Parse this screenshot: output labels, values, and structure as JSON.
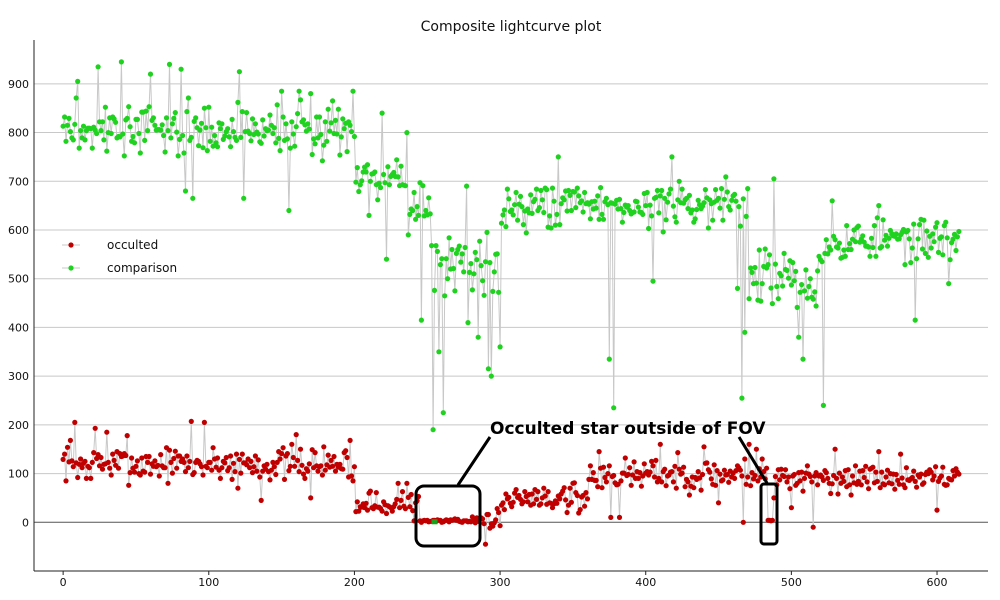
{
  "chart_data": {
    "type": "scatter",
    "title": "Composite lightcurve plot",
    "xlabel": "",
    "ylabel": "",
    "xlim": [
      -20,
      635
    ],
    "ylim": [
      -100,
      990
    ],
    "xticks": [
      0,
      100,
      200,
      300,
      400,
      500,
      600
    ],
    "yticks": [
      0,
      100,
      200,
      300,
      400,
      500,
      600,
      700,
      800,
      900
    ],
    "grid": "horizontal",
    "legend_position": "left",
    "legend": [
      "occulted",
      "comparison"
    ],
    "colors": {
      "occulted": "#c00000",
      "comparison": "#1fd21f",
      "connector": "#c8c8c8",
      "grid": "#c8c8c8",
      "missing_marker": "#1aa01a"
    },
    "annotation": {
      "text": "Occulted star outside of FOV",
      "targets": [
        [
          245,
          280
        ],
        [
          484,
          487
        ]
      ]
    },
    "series": [
      {
        "name": "occulted",
        "segments": [
          {
            "x_start": 0,
            "x_end": 200,
            "mean": 120,
            "amp": 32,
            "seed": 7
          },
          {
            "x_start": 201,
            "x_end": 244,
            "mean": 38,
            "amp": 24,
            "seed": 11
          },
          {
            "x_start": 245,
            "x_end": 280,
            "mean": 3,
            "amp": 3,
            "seed": 13
          },
          {
            "x_start": 281,
            "x_end": 300,
            "mean": 10,
            "amp": 22,
            "seed": 17
          },
          {
            "x_start": 301,
            "x_end": 360,
            "mean": 48,
            "amp": 28,
            "seed": 19
          },
          {
            "x_start": 361,
            "x_end": 483,
            "mean": 98,
            "amp": 30,
            "seed": 23
          },
          {
            "x_start": 484,
            "x_end": 487,
            "mean": 3,
            "amp": 2,
            "seed": 29
          },
          {
            "x_start": 488,
            "x_end": 615,
            "mean": 90,
            "amp": 25,
            "seed": 31
          }
        ],
        "points": [
          {
            "x": 1,
            "y": 140
          },
          {
            "x": 5,
            "y": 168
          },
          {
            "x": 8,
            "y": 205
          },
          {
            "x": 16,
            "y": 90
          },
          {
            "x": 22,
            "y": 193
          },
          {
            "x": 30,
            "y": 185
          },
          {
            "x": 44,
            "y": 178
          },
          {
            "x": 52,
            "y": 100
          },
          {
            "x": 88,
            "y": 207
          },
          {
            "x": 97,
            "y": 205
          },
          {
            "x": 120,
            "y": 70
          },
          {
            "x": 136,
            "y": 45
          },
          {
            "x": 160,
            "y": 180
          },
          {
            "x": 170,
            "y": 50
          },
          {
            "x": 197,
            "y": 168
          },
          {
            "x": 210,
            "y": 60
          },
          {
            "x": 230,
            "y": 80
          },
          {
            "x": 236,
            "y": 80
          },
          {
            "x": 290,
            "y": -45
          },
          {
            "x": 330,
            "y": 70
          },
          {
            "x": 350,
            "y": 80
          },
          {
            "x": 368,
            "y": 145
          },
          {
            "x": 376,
            "y": 10
          },
          {
            "x": 382,
            "y": 10
          },
          {
            "x": 410,
            "y": 160
          },
          {
            "x": 440,
            "y": 155
          },
          {
            "x": 450,
            "y": 40
          },
          {
            "x": 467,
            "y": 0
          },
          {
            "x": 471,
            "y": 160
          },
          {
            "x": 476,
            "y": 150
          },
          {
            "x": 480,
            "y": 130
          },
          {
            "x": 488,
            "y": 50
          },
          {
            "x": 500,
            "y": 30
          },
          {
            "x": 515,
            "y": -10
          },
          {
            "x": 530,
            "y": 150
          },
          {
            "x": 560,
            "y": 145
          },
          {
            "x": 575,
            "y": 140
          },
          {
            "x": 600,
            "y": 25
          }
        ]
      },
      {
        "name": "comparison",
        "segments": [
          {
            "x_start": 0,
            "x_end": 200,
            "mean": 805,
            "amp": 48,
            "seed": 3
          },
          {
            "x_start": 201,
            "x_end": 235,
            "mean": 710,
            "amp": 40,
            "seed": 5
          },
          {
            "x_start": 236,
            "x_end": 252,
            "mean": 650,
            "amp": 50,
            "seed": 37
          },
          {
            "x_start": 253,
            "x_end": 300,
            "mean": 530,
            "amp": 55,
            "seed": 41
          },
          {
            "x_start": 301,
            "x_end": 470,
            "mean": 650,
            "amp": 42,
            "seed": 43
          },
          {
            "x_start": 471,
            "x_end": 520,
            "mean": 500,
            "amp": 55,
            "seed": 47
          },
          {
            "x_start": 521,
            "x_end": 615,
            "mean": 580,
            "amp": 40,
            "seed": 53
          }
        ],
        "points": [
          {
            "x": 10,
            "y": 905
          },
          {
            "x": 24,
            "y": 935
          },
          {
            "x": 40,
            "y": 945
          },
          {
            "x": 60,
            "y": 920
          },
          {
            "x": 73,
            "y": 940
          },
          {
            "x": 81,
            "y": 930
          },
          {
            "x": 121,
            "y": 925
          },
          {
            "x": 150,
            "y": 885
          },
          {
            "x": 162,
            "y": 885
          },
          {
            "x": 170,
            "y": 880
          },
          {
            "x": 185,
            "y": 865
          },
          {
            "x": 199,
            "y": 885
          },
          {
            "x": 84,
            "y": 680
          },
          {
            "x": 89,
            "y": 665
          },
          {
            "x": 124,
            "y": 665
          },
          {
            "x": 155,
            "y": 640
          },
          {
            "x": 210,
            "y": 630
          },
          {
            "x": 219,
            "y": 840
          },
          {
            "x": 222,
            "y": 540
          },
          {
            "x": 236,
            "y": 800
          },
          {
            "x": 246,
            "y": 415
          },
          {
            "x": 254,
            "y": 190
          },
          {
            "x": 258,
            "y": 350
          },
          {
            "x": 261,
            "y": 225
          },
          {
            "x": 262,
            "y": 465
          },
          {
            "x": 266,
            "y": 520
          },
          {
            "x": 277,
            "y": 690
          },
          {
            "x": 278,
            "y": 410
          },
          {
            "x": 285,
            "y": 380
          },
          {
            "x": 292,
            "y": 315
          },
          {
            "x": 294,
            "y": 300
          },
          {
            "x": 300,
            "y": 360
          },
          {
            "x": 340,
            "y": 750
          },
          {
            "x": 375,
            "y": 335
          },
          {
            "x": 378,
            "y": 235
          },
          {
            "x": 405,
            "y": 310
          },
          {
            "x": 405,
            "y": 495
          },
          {
            "x": 418,
            "y": 750
          },
          {
            "x": 463,
            "y": 480
          },
          {
            "x": 466,
            "y": 255
          },
          {
            "x": 468,
            "y": 390
          },
          {
            "x": 488,
            "y": 705
          },
          {
            "x": 505,
            "y": 380
          },
          {
            "x": 508,
            "y": 335
          },
          {
            "x": 522,
            "y": 240
          },
          {
            "x": 528,
            "y": 660
          },
          {
            "x": 560,
            "y": 650
          },
          {
            "x": 585,
            "y": 415
          },
          {
            "x": 600,
            "y": 615
          },
          {
            "x": 608,
            "y": 490
          }
        ]
      }
    ]
  }
}
